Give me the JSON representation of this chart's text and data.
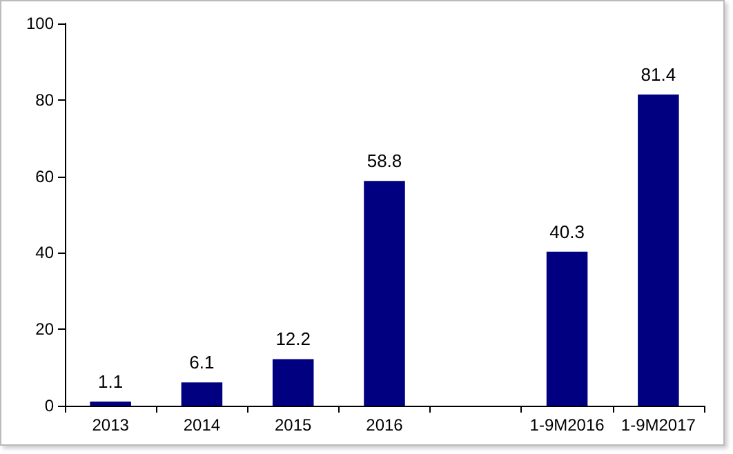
{
  "chart_data": {
    "type": "bar",
    "categories": [
      "2013",
      "2014",
      "2015",
      "2016",
      null,
      "1-9M2016",
      "1-9M2017"
    ],
    "values": [
      1.1,
      6.1,
      12.2,
      58.8,
      null,
      40.3,
      81.4
    ],
    "color": "#000080",
    "ylim": [
      0,
      100
    ],
    "yticks": [
      0,
      20,
      40,
      60,
      80,
      100
    ],
    "grid": false,
    "data_labels": true
  }
}
